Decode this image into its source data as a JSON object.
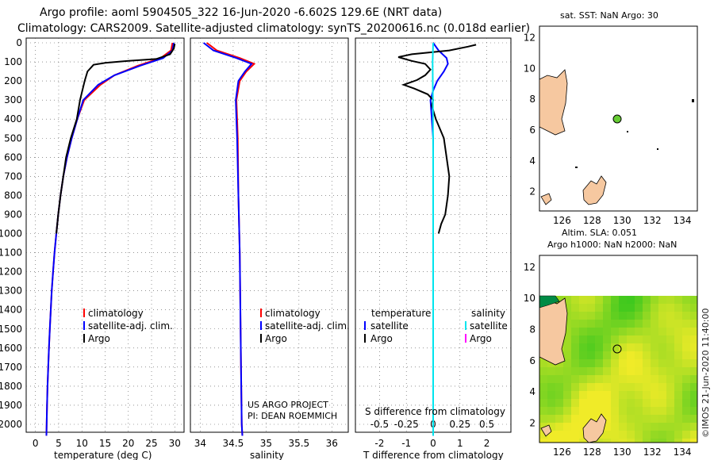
{
  "title": {
    "line1": "Argo profile: aoml 5904505_322 16-Jun-2020 -6.602S 129.6E (NRT data)",
    "line2": "Climatology: CARS2009. Satellite-adjusted climatology: synTS_20200616.nc (0.018d earlier)"
  },
  "depth_ticks": [
    "0",
    "100",
    "200",
    "300",
    "400",
    "500",
    "600",
    "700",
    "800",
    "900",
    "1000",
    "1100",
    "1200",
    "1300",
    "1400",
    "1500",
    "1600",
    "1700",
    "1800",
    "1900",
    "2000"
  ],
  "legend_main": {
    "clim": "climatology",
    "sat": "satellite-adj. clim.",
    "argo": "Argo"
  },
  "legend_diff": {
    "temperature": "temperature",
    "salinity": "salinity",
    "satellite": "satellite",
    "argo": "Argo"
  },
  "credit_project": "US ARGO PROJECT",
  "credit_pi": "PI: DEAN ROEMMICH",
  "s_diff_label": "S difference from climatology",
  "map1_title": "sat. SST: NaN Argo: 30",
  "map2_title1": "Altim. SLA: 0.051",
  "map2_title2": "Argo h1000: NaN h2000: NaN",
  "imos_label": "©IMOS 21-Jun-2020 11:40:00",
  "colors": {
    "clim": "#ff0000",
    "sat": "#0000ff",
    "argo": "#000000",
    "sat_sal": "#00e5ee",
    "argo_sal": "#ff00ff",
    "land": "#f6c8a0",
    "float": "#66cc33"
  },
  "chart_data": [
    {
      "type": "line",
      "name": "temperature",
      "xlabel": "temperature (deg C)",
      "ylabel": "",
      "xlim": [
        -2,
        32
      ],
      "ylim": [
        2070,
        0
      ],
      "xticks": [
        0,
        5,
        10,
        15,
        20,
        25,
        30
      ],
      "series": [
        {
          "name": "climatology",
          "color": "#ff0000",
          "points": [
            [
              29.5,
              0
            ],
            [
              29.2,
              40
            ],
            [
              27,
              80
            ],
            [
              22,
              120
            ],
            [
              17,
              170
            ],
            [
              14,
              220
            ],
            [
              10.5,
              300
            ],
            [
              9,
              400
            ],
            [
              7.8,
              500
            ],
            [
              6.8,
              600
            ],
            [
              6,
              700
            ],
            [
              5.4,
              800
            ],
            [
              4.9,
              900
            ],
            [
              4.5,
              1000
            ],
            [
              4.1,
              1100
            ],
            [
              3.8,
              1200
            ],
            [
              3.5,
              1300
            ],
            [
              3.3,
              1400
            ],
            [
              3.1,
              1500
            ],
            [
              2.9,
              1600
            ],
            [
              2.75,
              1700
            ],
            [
              2.6,
              1800
            ],
            [
              2.5,
              1900
            ],
            [
              2.4,
              2000
            ],
            [
              2.35,
              2060
            ]
          ]
        },
        {
          "name": "satellite-adj. clim.",
          "color": "#0000ff",
          "points": [
            [
              29.8,
              0
            ],
            [
              29.5,
              40
            ],
            [
              27.5,
              80
            ],
            [
              22.5,
              120
            ],
            [
              17,
              170
            ],
            [
              13.5,
              220
            ],
            [
              10.3,
              300
            ],
            [
              9,
              400
            ],
            [
              7.8,
              500
            ],
            [
              6.8,
              600
            ],
            [
              6,
              700
            ],
            [
              5.4,
              800
            ],
            [
              4.9,
              900
            ],
            [
              4.5,
              1000
            ],
            [
              4.1,
              1100
            ],
            [
              3.8,
              1200
            ],
            [
              3.5,
              1300
            ],
            [
              3.3,
              1400
            ],
            [
              3.1,
              1500
            ],
            [
              2.9,
              1600
            ],
            [
              2.75,
              1700
            ],
            [
              2.6,
              1800
            ],
            [
              2.5,
              1900
            ],
            [
              2.4,
              2000
            ],
            [
              2.35,
              2060
            ]
          ]
        },
        {
          "name": "Argo",
          "color": "#000000",
          "points": [
            [
              30,
              5
            ],
            [
              29.8,
              30
            ],
            [
              29,
              60
            ],
            [
              26,
              85
            ],
            [
              20,
              95
            ],
            [
              15,
              105
            ],
            [
              12.5,
              115
            ],
            [
              11.2,
              150
            ],
            [
              10.6,
              200
            ],
            [
              10.1,
              250
            ],
            [
              9.6,
              300
            ],
            [
              8.9,
              400
            ],
            [
              7.6,
              500
            ],
            [
              6.6,
              600
            ],
            [
              6,
              700
            ],
            [
              5.4,
              800
            ],
            [
              4.9,
              900
            ],
            [
              4.5,
              1000
            ]
          ]
        }
      ]
    },
    {
      "type": "line",
      "name": "salinity",
      "xlabel": "salinity",
      "ylabel": "",
      "xlim": [
        33.85,
        36.25
      ],
      "ylim": [
        2070,
        0
      ],
      "xticks": [
        34,
        34.5,
        35,
        35.5,
        36
      ],
      "series": [
        {
          "name": "climatology",
          "color": "#ff0000",
          "points": [
            [
              34.1,
              0
            ],
            [
              34.25,
              40
            ],
            [
              34.6,
              80
            ],
            [
              34.82,
              110
            ],
            [
              34.7,
              150
            ],
            [
              34.6,
              200
            ],
            [
              34.55,
              300
            ],
            [
              34.56,
              400
            ],
            [
              34.57,
              500
            ],
            [
              34.58,
              800
            ],
            [
              34.6,
              1100
            ],
            [
              34.61,
              1400
            ],
            [
              34.62,
              1700
            ],
            [
              34.63,
              2000
            ],
            [
              34.64,
              2060
            ]
          ]
        },
        {
          "name": "satellite-adj. clim.",
          "color": "#0000ff",
          "points": [
            [
              34.05,
              0
            ],
            [
              34.2,
              40
            ],
            [
              34.55,
              80
            ],
            [
              34.78,
              110
            ],
            [
              34.68,
              150
            ],
            [
              34.58,
              200
            ],
            [
              34.54,
              300
            ],
            [
              34.55,
              400
            ],
            [
              34.56,
              500
            ],
            [
              34.58,
              800
            ],
            [
              34.6,
              1100
            ],
            [
              34.61,
              1400
            ],
            [
              34.62,
              1700
            ],
            [
              34.63,
              2000
            ],
            [
              34.64,
              2060
            ]
          ]
        }
      ]
    },
    {
      "type": "line",
      "name": "difference",
      "xlabel": "T difference from climatology",
      "ylabel": "",
      "xlim": [
        -2.9,
        2.9
      ],
      "ylim": [
        2070,
        0
      ],
      "xticks": [
        -2,
        -1,
        0,
        1,
        2
      ],
      "s_xlim": [
        -0.725,
        0.725
      ],
      "s_xticks": [
        -0.5,
        -0.25,
        0,
        0.25,
        0.5
      ],
      "series": [
        {
          "name": "T satellite",
          "color": "#0000ff",
          "points": [
            [
              0,
              0
            ],
            [
              0.2,
              40
            ],
            [
              0.5,
              80
            ],
            [
              0.55,
              110
            ],
            [
              0.4,
              150
            ],
            [
              0.15,
              200
            ],
            [
              0,
              250
            ],
            [
              -0.1,
              300
            ],
            [
              -0.05,
              400
            ],
            [
              0,
              500
            ],
            [
              0,
              2060
            ]
          ]
        },
        {
          "name": "T Argo",
          "color": "#000000",
          "points": [
            [
              1.6,
              10
            ],
            [
              1.3,
              20
            ],
            [
              0.6,
              40
            ],
            [
              -0.8,
              60
            ],
            [
              -1.3,
              75
            ],
            [
              -0.8,
              95
            ],
            [
              -0.3,
              110
            ],
            [
              -0.1,
              140
            ],
            [
              -0.3,
              170
            ],
            [
              -0.6,
              195
            ],
            [
              -1.1,
              220
            ],
            [
              -0.7,
              240
            ],
            [
              -0.2,
              270
            ],
            [
              0,
              300
            ],
            [
              -0.05,
              330
            ],
            [
              0.1,
              400
            ],
            [
              0.4,
              500
            ],
            [
              0.5,
              600
            ],
            [
              0.6,
              700
            ],
            [
              0.55,
              800
            ],
            [
              0.45,
              900
            ],
            [
              0.3,
              950
            ],
            [
              0.2,
              1000
            ]
          ]
        },
        {
          "name": "S satellite",
          "color": "#00e5ee",
          "points": [
            [
              0,
              0
            ],
            [
              -0.02,
              100
            ],
            [
              -0.01,
              300
            ],
            [
              0,
              600
            ],
            [
              0,
              2060
            ]
          ]
        }
      ]
    }
  ]
}
